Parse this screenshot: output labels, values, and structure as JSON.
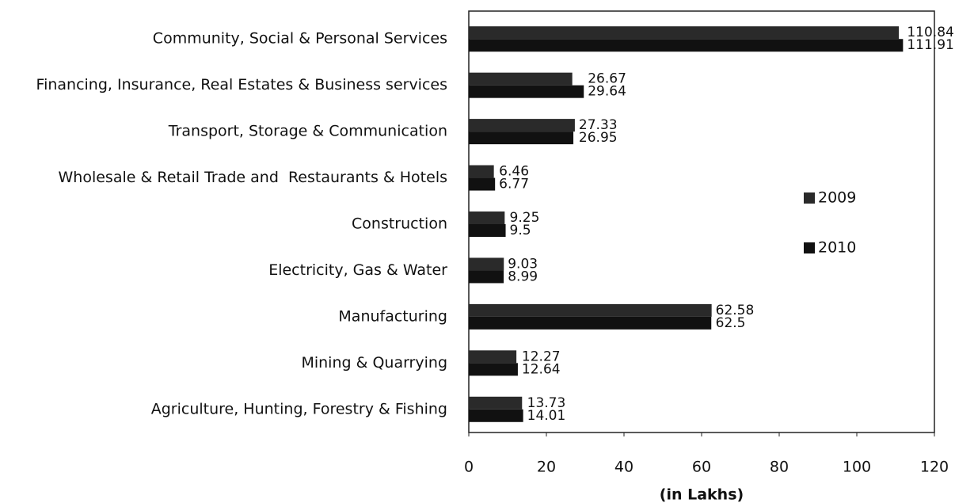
{
  "chart_data": {
    "type": "bar",
    "orientation": "horizontal",
    "x_label": "(in Lakhs)",
    "categories": [
      "Community, Social & Personal Services",
      "Financing, Insurance, Real Estates & Business services",
      "Transport, Storage & Communication",
      "Wholesale & Retail Trade and  Restaurants & Hotels",
      "Construction",
      "Electricity, Gas & Water",
      "Manufacturing",
      "Mining & Quarrying",
      "Agriculture, Hunting, Forestry & Fishing"
    ],
    "series": [
      {
        "name": "2009",
        "color": "#2a2a2a",
        "values": [
          110.84,
          26.67,
          27.33,
          6.46,
          9.25,
          9.03,
          62.58,
          12.27,
          13.73
        ]
      },
      {
        "name": "2010",
        "color": "#111111",
        "values": [
          111.91,
          29.64,
          26.95,
          6.77,
          9.5,
          8.99,
          62.5,
          12.64,
          14.01
        ]
      }
    ],
    "xlim": [
      0,
      120
    ],
    "xticks": [
      0,
      20,
      40,
      60,
      80,
      100,
      120
    ],
    "grid": false,
    "legend": "right"
  }
}
